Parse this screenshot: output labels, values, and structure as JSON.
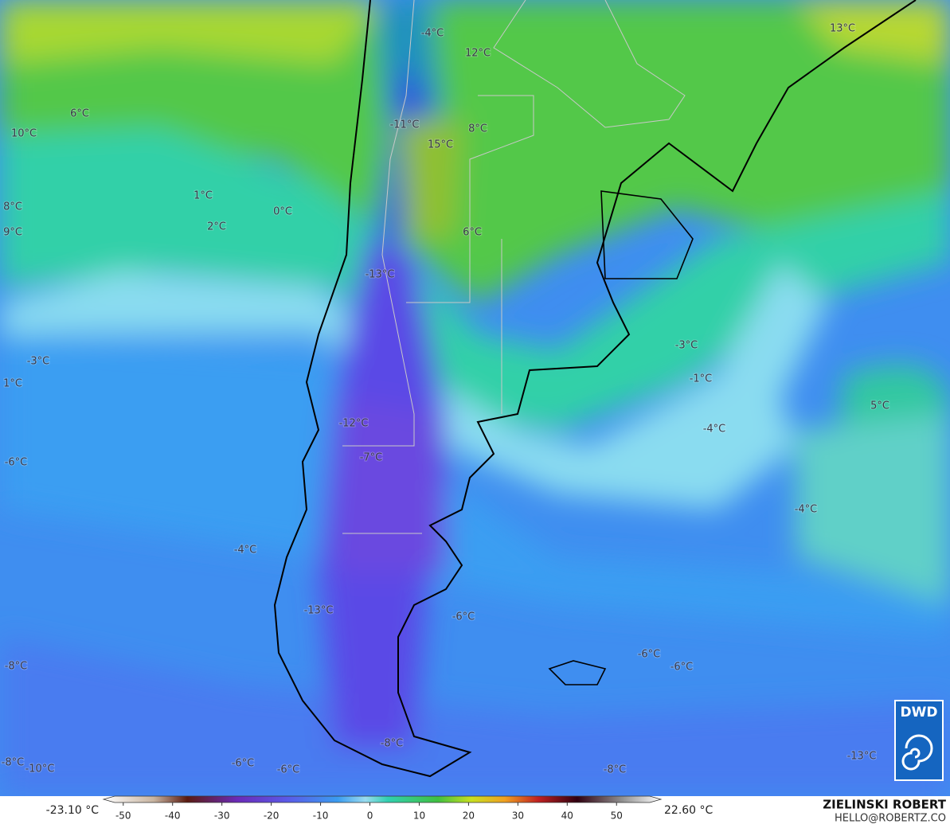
{
  "map": {
    "labels": [
      "-4°C",
      "12°C",
      "13°C",
      "6°C",
      "10°C",
      "-11°C",
      "8°C",
      "15°C",
      "1°C",
      "8°C",
      "0°C",
      "9°C",
      "2°C",
      "6°C",
      "-13°C",
      "-3°C",
      "-3°C",
      "-1°C",
      "1°C",
      "5°C",
      "-12°C",
      "-4°C",
      "-7°C",
      "-6°C",
      "-4°C",
      "-4°C",
      "-13°C",
      "-6°C",
      "-6°C",
      "-8°C",
      "-6°C",
      "-8°C",
      "-8°C",
      "-10°C",
      "-6°C",
      "-6°C",
      "-8°C",
      "-13°C"
    ]
  },
  "colorbar": {
    "min_label": "-23.10 °C",
    "max_label": "22.60 °C",
    "range": [
      -54,
      59
    ],
    "ticks": [
      -50,
      -40,
      -30,
      -20,
      -10,
      0,
      10,
      20,
      30,
      40,
      50
    ]
  },
  "credit": {
    "name": "ZIELINSKI ROBERT",
    "email": "HELLO@ROBERTZ.CO",
    "logo": "DWD"
  }
}
